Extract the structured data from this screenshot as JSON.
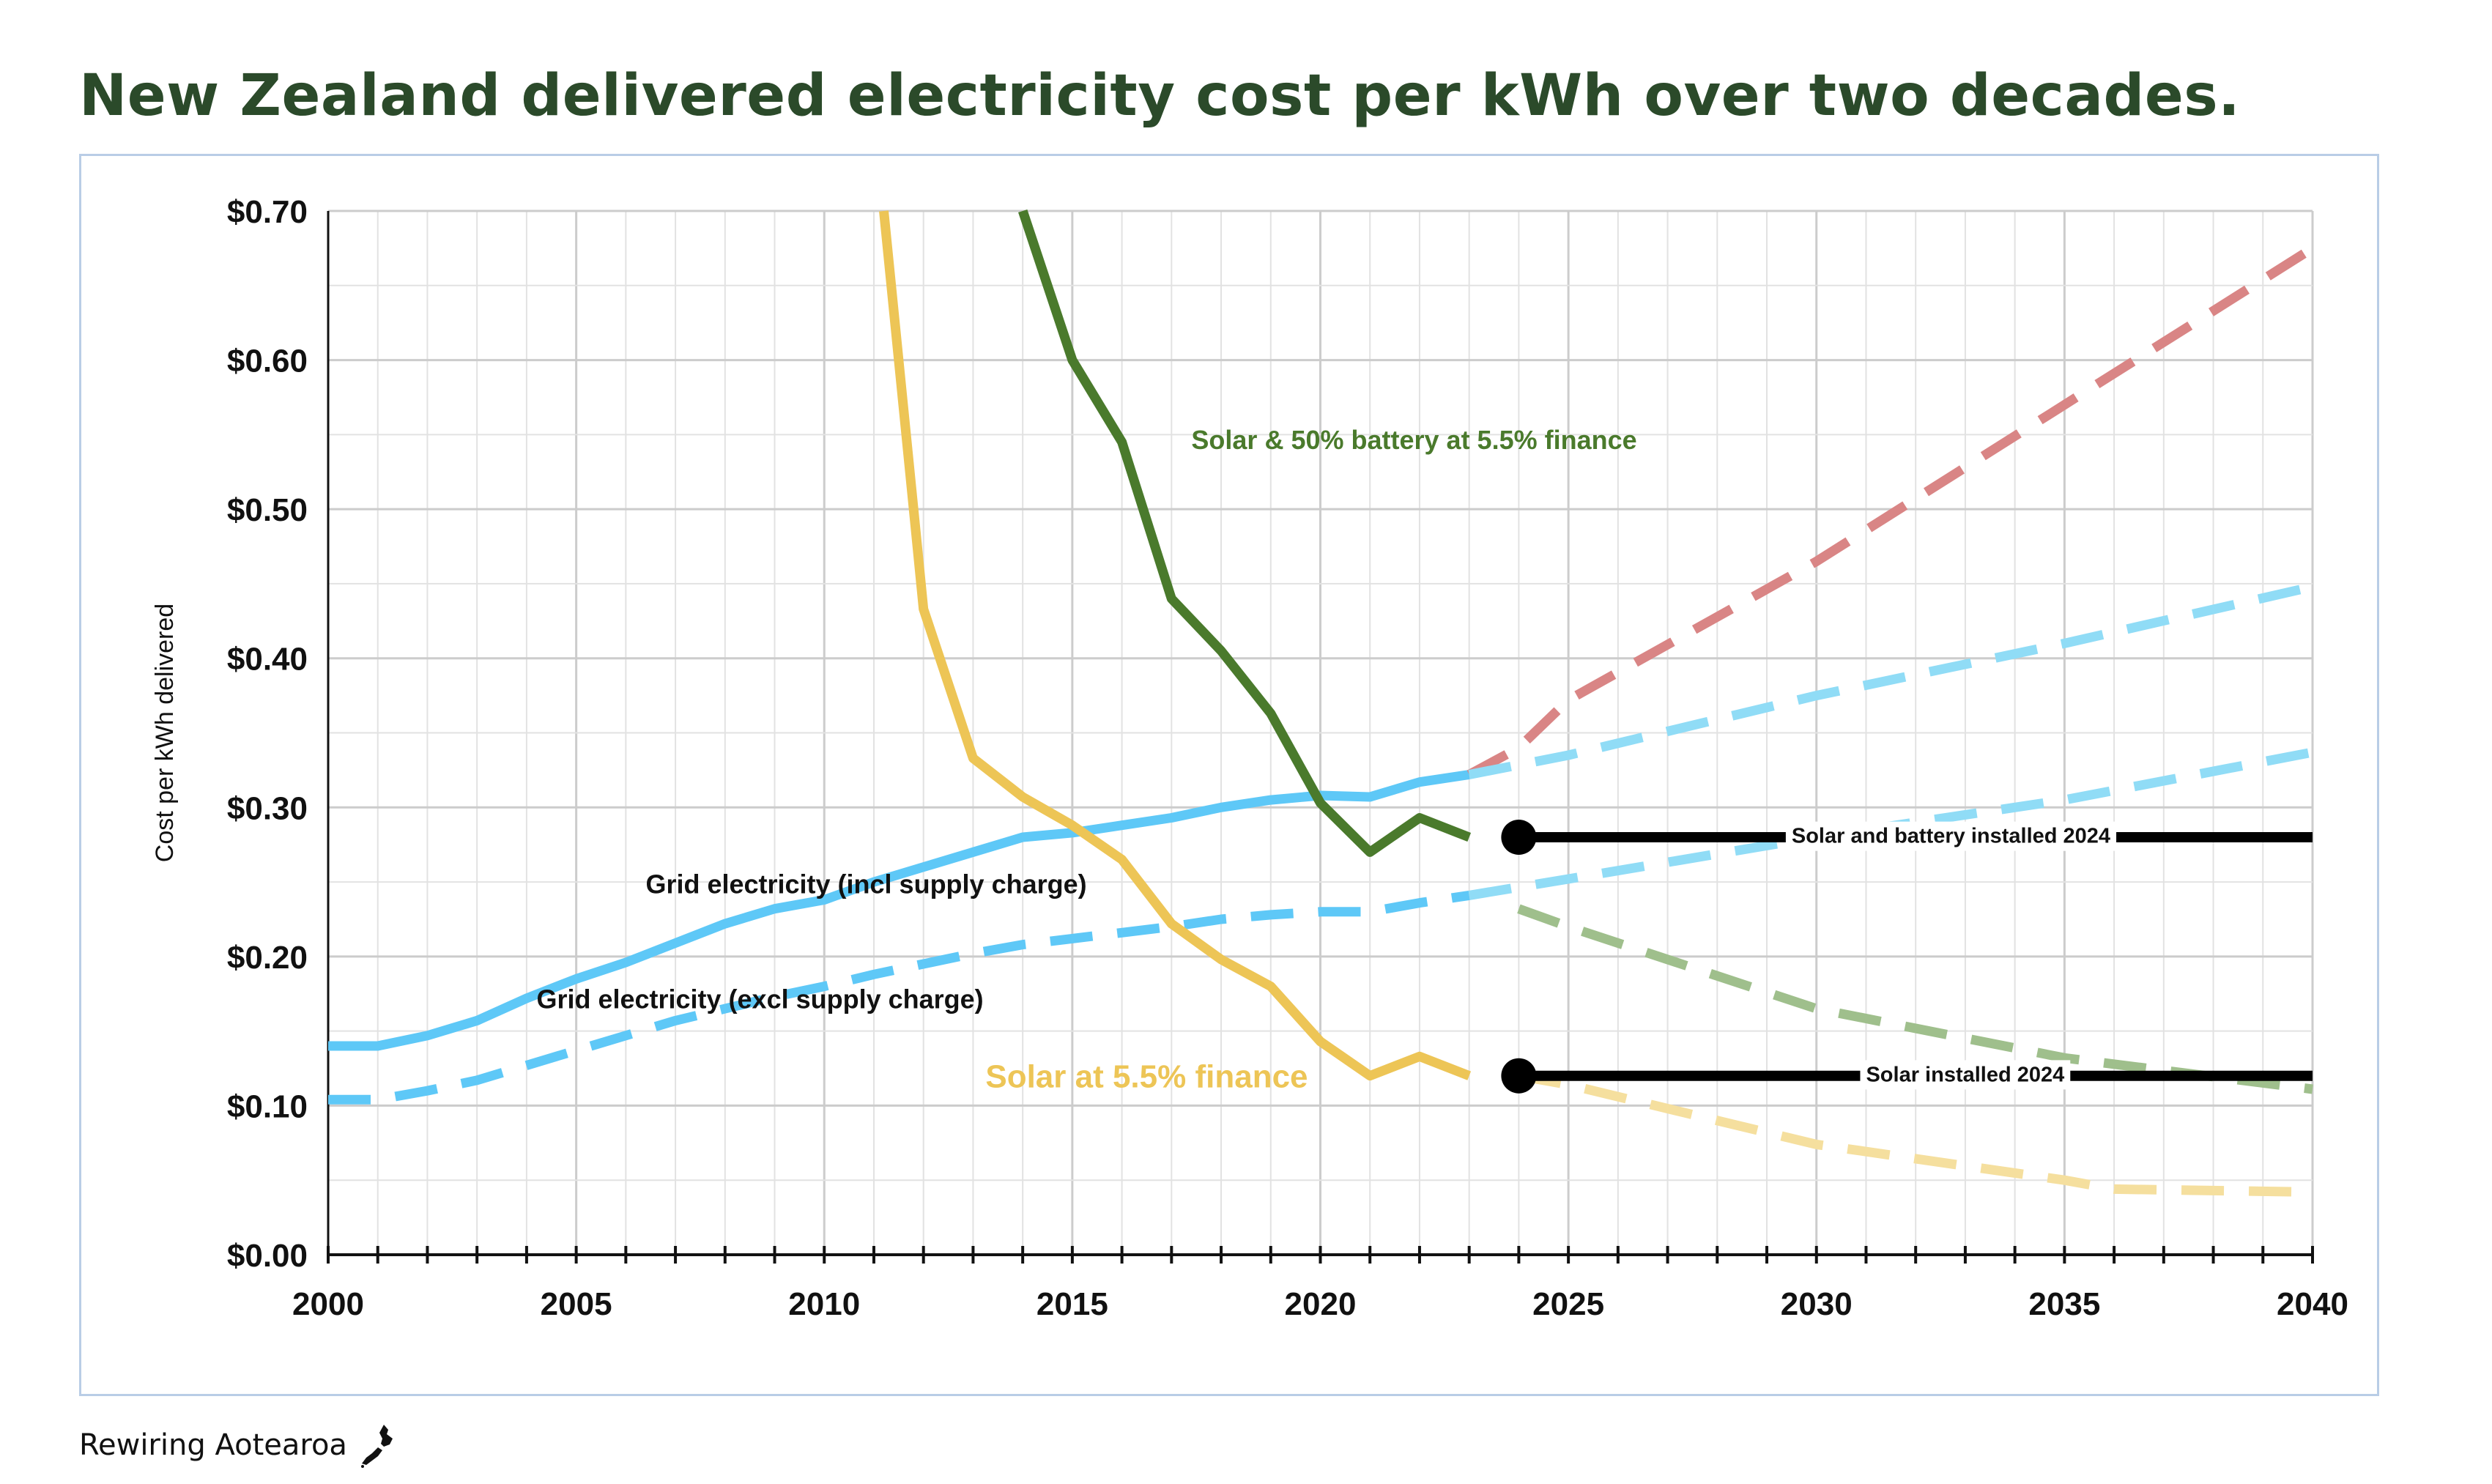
{
  "page": {
    "title": "New Zealand delivered electricity cost per kWh over two decades.",
    "footer_brand": "Rewiring Aotearoa"
  },
  "chart_data": {
    "type": "line",
    "title": "New Zealand delivered electricity cost per kWh over two decades.",
    "xlabel": "",
    "ylabel": "Cost per kWh delivered",
    "xlim": [
      2000,
      2040
    ],
    "ylim": [
      0,
      0.7
    ],
    "grid": true,
    "x_ticks": [
      2000,
      2005,
      2010,
      2015,
      2020,
      2025,
      2030,
      2035,
      2040
    ],
    "x_tick_labels": [
      "2000",
      "2005",
      "2010",
      "2015",
      "2020",
      "2025",
      "2030",
      "2035",
      "2040"
    ],
    "y_ticks": [
      0,
      0.1,
      0.2,
      0.3,
      0.4,
      0.5,
      0.6,
      0.7
    ],
    "y_tick_labels": [
      "$0.00",
      "$0.10",
      "$0.20",
      "$0.30",
      "$0.40",
      "$0.50",
      "$0.60",
      "$0.70"
    ],
    "series": [
      {
        "name": "Grid electricity (incl supply charge)",
        "style": "solid",
        "color": "#5ec8f7",
        "x": [
          2000,
          2001,
          2002,
          2003,
          2004,
          2005,
          2006,
          2007,
          2008,
          2009,
          2010,
          2011,
          2012,
          2013,
          2014,
          2015,
          2016,
          2017,
          2018,
          2019,
          2020,
          2021,
          2022,
          2023
        ],
        "y": [
          0.14,
          0.14,
          0.147,
          0.157,
          0.172,
          0.185,
          0.196,
          0.209,
          0.222,
          0.232,
          0.238,
          0.25,
          0.26,
          0.27,
          0.28,
          0.283,
          0.288,
          0.293,
          0.3,
          0.305,
          0.308,
          0.307,
          0.317,
          0.322
        ]
      },
      {
        "name": "Grid electricity (excl supply charge)",
        "style": "dashed",
        "color": "#5ec8f7",
        "x": [
          2000,
          2001,
          2002,
          2003,
          2004,
          2005,
          2006,
          2007,
          2008,
          2009,
          2010,
          2011,
          2012,
          2013,
          2014,
          2015,
          2016,
          2017,
          2018,
          2019,
          2020,
          2021,
          2022,
          2023
        ],
        "y": [
          0.104,
          0.104,
          0.11,
          0.117,
          0.127,
          0.137,
          0.147,
          0.157,
          0.165,
          0.173,
          0.18,
          0.188,
          0.195,
          0.202,
          0.208,
          0.212,
          0.216,
          0.22,
          0.225,
          0.228,
          0.23,
          0.23,
          0.236,
          0.241
        ]
      },
      {
        "name": "Solar at 5.5% finance",
        "style": "solid",
        "color": "#edc556",
        "x": [
          2011.2,
          2011.8,
          2012,
          2013,
          2014,
          2015,
          2016,
          2017,
          2018,
          2019,
          2020,
          2021,
          2022,
          2023
        ],
        "y": [
          0.7,
          0.5,
          0.433,
          0.333,
          0.307,
          0.288,
          0.265,
          0.222,
          0.198,
          0.18,
          0.143,
          0.12,
          0.133,
          0.12
        ]
      },
      {
        "name": "Solar & 50% battery at 5.5% finance",
        "style": "solid",
        "color": "#4a7a2c",
        "x": [
          2014,
          2015,
          2016,
          2017,
          2018,
          2019,
          2020,
          2021,
          2022,
          2023
        ],
        "y": [
          0.7,
          0.6,
          0.545,
          0.44,
          0.405,
          0.363,
          0.303,
          0.27,
          0.293,
          0.28
        ]
      },
      {
        "name": "Grid electricity (incl supply charge) projection - high",
        "style": "dashed",
        "color": "#d98585",
        "x": [
          2023,
          2024,
          2025,
          2030,
          2035,
          2040
        ],
        "y": [
          0.322,
          0.34,
          0.372,
          0.465,
          0.57,
          0.675
        ]
      },
      {
        "name": "Grid electricity (incl supply charge) projection",
        "style": "dashed",
        "color": "#90dcf6",
        "x": [
          2023,
          2025,
          2030,
          2035,
          2040
        ],
        "y": [
          0.322,
          0.335,
          0.375,
          0.41,
          0.448
        ]
      },
      {
        "name": "Grid electricity (excl supply charge) projection",
        "style": "dashed",
        "color": "#90dcf6",
        "x": [
          2023,
          2025,
          2030,
          2035,
          2040
        ],
        "y": [
          0.241,
          0.252,
          0.28,
          0.305,
          0.337
        ]
      },
      {
        "name": "Solar and battery installed 2024 - falling cost projection",
        "style": "dashed",
        "color": "#9fbf8c",
        "x": [
          2024,
          2025,
          2030,
          2035,
          2040
        ],
        "y": [
          0.232,
          0.22,
          0.165,
          0.132,
          0.111
        ]
      },
      {
        "name": "Solar installed 2024 - falling cost projection",
        "style": "dashed",
        "color": "#f5df9e",
        "x": [
          2024,
          2025,
          2030,
          2035,
          2036,
          2040
        ],
        "y": [
          0.12,
          0.114,
          0.074,
          0.05,
          0.044,
          0.042
        ]
      },
      {
        "name": "Solar and battery installed 2024",
        "style": "solid",
        "color": "#000000",
        "marker_start": true,
        "x": [
          2024,
          2040
        ],
        "y": [
          0.28,
          0.28
        ]
      },
      {
        "name": "Solar installed 2024",
        "style": "solid",
        "color": "#000000",
        "marker_start": true,
        "x": [
          2024,
          2040
        ],
        "y": [
          0.12,
          0.12
        ]
      }
    ],
    "annotations": [
      {
        "text": "Solar & 50% battery at 5.5% finance",
        "x": 2017.4,
        "y": 0.545,
        "color": "#4a7a2c",
        "size": "small"
      },
      {
        "text": "Grid electricity (incl supply charge)",
        "x": 2006.4,
        "y": 0.247,
        "color": "#111111",
        "size": "small"
      },
      {
        "text": "Grid electricity (excl supply charge)",
        "x": 2004.2,
        "y": 0.17,
        "color": "#111111",
        "size": "small"
      },
      {
        "text": "Solar at 5.5% finance",
        "x": 2013.25,
        "y": 0.118,
        "color": "#edc556",
        "size": "large"
      },
      {
        "text": "Solar and battery installed 2024",
        "x": 2029.5,
        "y": 0.28,
        "color": "#111111",
        "size": "tiny",
        "boxed": true
      },
      {
        "text": "Solar installed 2024",
        "x": 2031.0,
        "y": 0.12,
        "color": "#111111",
        "size": "tiny",
        "boxed": true
      }
    ]
  }
}
